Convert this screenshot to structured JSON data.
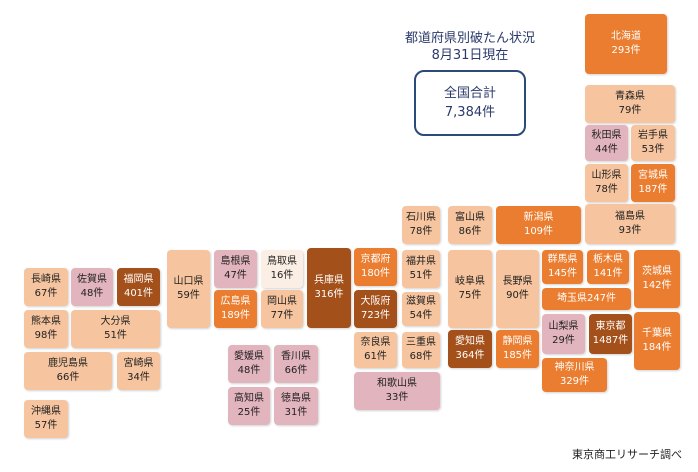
{
  "title": {
    "line1": "都道府県別破たん状況",
    "line2": "8月31日現在"
  },
  "total": {
    "label": "全国合計",
    "value": "7,384件"
  },
  "credit": "東京商工リサーチ調べ",
  "colors": {
    "lt": "#fbeee4",
    "pk": "#e2b4be",
    "pe": "#f6c49e",
    "or": "#ea7d2f",
    "dk": "#a3501a"
  },
  "prefectures": {
    "hokkaido": {
      "name": "北海道",
      "count": "293件"
    },
    "aomori": {
      "name": "青森県",
      "count": "79件"
    },
    "akita": {
      "name": "秋田県",
      "count": "44件"
    },
    "iwate": {
      "name": "岩手県",
      "count": "53件"
    },
    "yamagata": {
      "name": "山形県",
      "count": "78件"
    },
    "miyagi": {
      "name": "宮城県",
      "count": "187件"
    },
    "fukushima": {
      "name": "福島県",
      "count": "93件"
    },
    "niigata": {
      "name": "新潟県",
      "count": "109件"
    },
    "ishikawa": {
      "name": "石川県",
      "count": "78件"
    },
    "toyama": {
      "name": "富山県",
      "count": "86件"
    },
    "fukui": {
      "name": "福井県",
      "count": "51件"
    },
    "gifu": {
      "name": "岐阜県",
      "count": "75件"
    },
    "nagano": {
      "name": "長野県",
      "count": "90件"
    },
    "gunma": {
      "name": "群馬県",
      "count": "145件"
    },
    "tochigi": {
      "name": "栃木県",
      "count": "141件"
    },
    "ibaraki": {
      "name": "茨城県",
      "count": "142件"
    },
    "saitama": {
      "name": "埼玉県",
      "count": "247件"
    },
    "yamanashi": {
      "name": "山梨県",
      "count": "29件"
    },
    "tokyo": {
      "name": "東京都",
      "count": "1487件"
    },
    "chiba": {
      "name": "千葉県",
      "count": "184件"
    },
    "kanagawa": {
      "name": "神奈川県",
      "count": "329件"
    },
    "shizuoka": {
      "name": "静岡県",
      "count": "185件"
    },
    "aichi": {
      "name": "愛知県",
      "count": "364件"
    },
    "shiga": {
      "name": "滋賀県",
      "count": "54件"
    },
    "mie": {
      "name": "三重県",
      "count": "68件"
    },
    "kyoto": {
      "name": "京都府",
      "count": "180件"
    },
    "osaka": {
      "name": "大阪府",
      "count": "723件"
    },
    "nara": {
      "name": "奈良県",
      "count": "61件"
    },
    "wakayama": {
      "name": "和歌山県",
      "count": "33件"
    },
    "hyogo": {
      "name": "兵庫県",
      "count": "316件"
    },
    "tottori": {
      "name": "鳥取県",
      "count": "16件"
    },
    "okayama": {
      "name": "岡山県",
      "count": "77件"
    },
    "shimane": {
      "name": "島根県",
      "count": "47件"
    },
    "hiroshima": {
      "name": "広島県",
      "count": "189件"
    },
    "yamaguchi": {
      "name": "山口県",
      "count": "59件"
    },
    "ehime": {
      "name": "愛媛県",
      "count": "48件"
    },
    "kagawa": {
      "name": "香川県",
      "count": "66件"
    },
    "kochi": {
      "name": "高知県",
      "count": "25件"
    },
    "tokushima": {
      "name": "徳島県",
      "count": "31件"
    },
    "nagasaki": {
      "name": "長崎県",
      "count": "67件"
    },
    "saga": {
      "name": "佐賀県",
      "count": "48件"
    },
    "fukuoka": {
      "name": "福岡県",
      "count": "401件"
    },
    "kumamoto": {
      "name": "熊本県",
      "count": "98件"
    },
    "oita": {
      "name": "大分県",
      "count": "51件"
    },
    "kagoshima": {
      "name": "鹿児島県",
      "count": "66件"
    },
    "miyazaki": {
      "name": "宮崎県",
      "count": "34件"
    },
    "okinawa": {
      "name": "沖縄県",
      "count": "57件"
    }
  }
}
